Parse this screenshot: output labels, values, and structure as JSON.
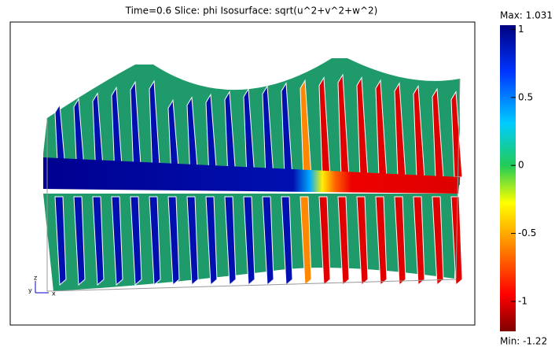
{
  "title": "Time=0.6    Slice: phi   Isosurface: sqrt(u^2+v^2+w^2)",
  "colorbar": {
    "max_label": "Max: 1.031",
    "min_label": "Min: -1.22",
    "range": [
      -1.22,
      1.031
    ],
    "ticks": [
      1,
      0.5,
      0,
      -0.5,
      -1
    ]
  },
  "axes_triad": {
    "z": "z",
    "y": "y",
    "x": "x"
  }
}
